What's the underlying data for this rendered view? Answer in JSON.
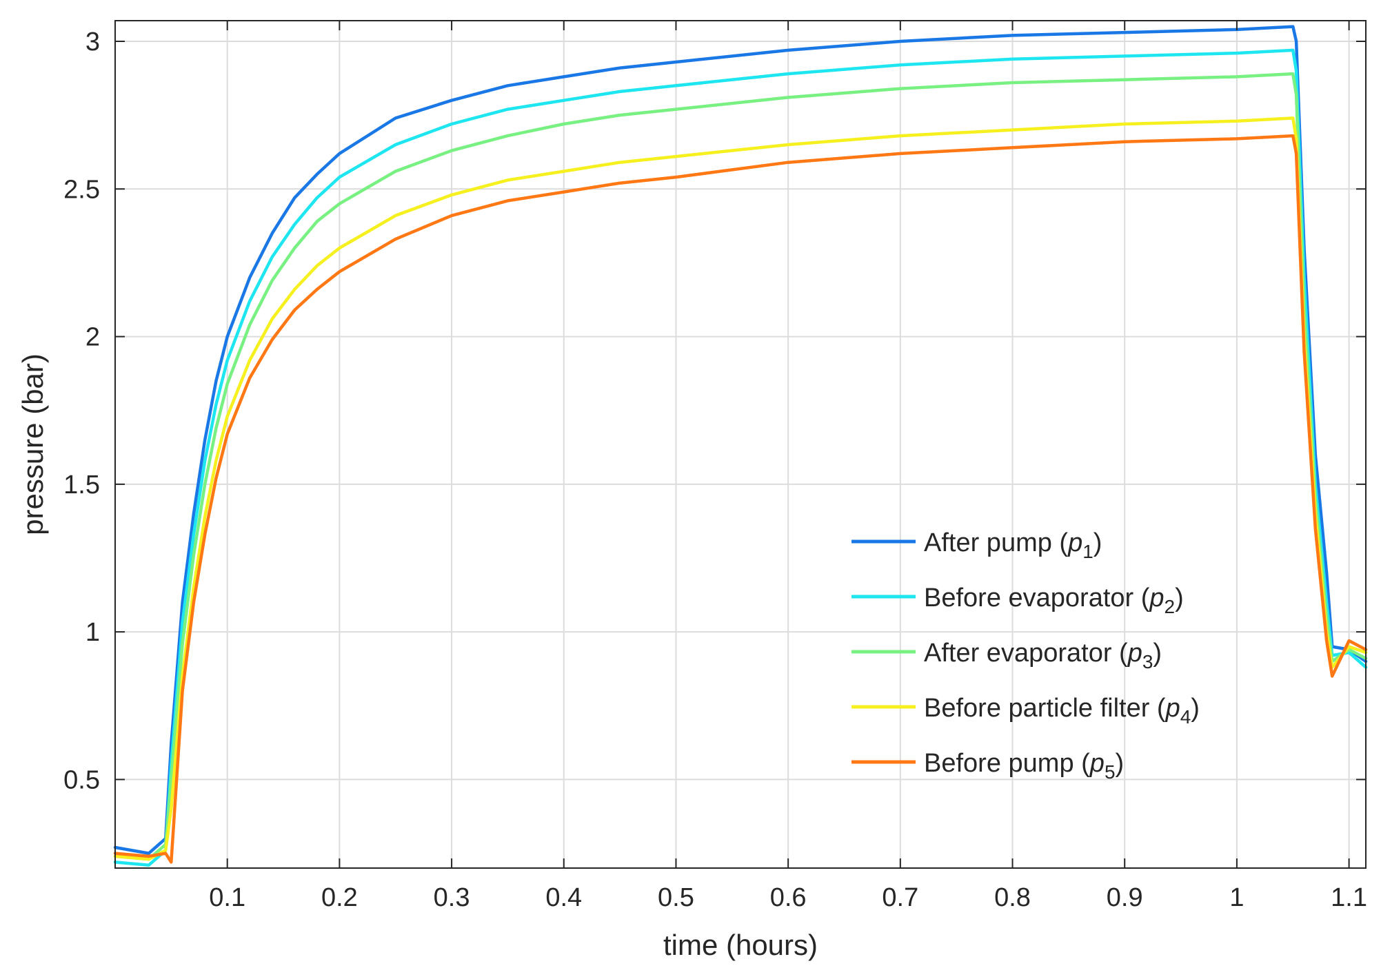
{
  "chart_data": {
    "type": "line",
    "title": "",
    "xlabel": "time (hours)",
    "ylabel": "pressure (bar)",
    "xlim": [
      0.0,
      1.115
    ],
    "ylim": [
      0.2,
      3.07
    ],
    "x_ticks": [
      0.1,
      0.2,
      0.3,
      0.4,
      0.5,
      0.6,
      0.7,
      0.8,
      0.9,
      1,
      1.1
    ],
    "y_ticks": [
      0.5,
      1,
      1.5,
      2,
      2.5,
      3
    ],
    "grid": true,
    "legend_position": "lower-right",
    "series": [
      {
        "name": "After pump",
        "symbol": "p",
        "subscript": "1",
        "color": "#1a78e6",
        "x": [
          0,
          0.03,
          0.045,
          0.05,
          0.06,
          0.07,
          0.08,
          0.09,
          0.1,
          0.12,
          0.14,
          0.16,
          0.18,
          0.2,
          0.25,
          0.3,
          0.35,
          0.4,
          0.45,
          0.5,
          0.6,
          0.7,
          0.8,
          0.9,
          1.0,
          1.05,
          1.053,
          1.06,
          1.07,
          1.08,
          1.085,
          1.1,
          1.115
        ],
        "values": [
          0.27,
          0.25,
          0.3,
          0.62,
          1.1,
          1.4,
          1.65,
          1.85,
          2.0,
          2.2,
          2.35,
          2.47,
          2.55,
          2.62,
          2.74,
          2.8,
          2.85,
          2.88,
          2.91,
          2.93,
          2.97,
          3.0,
          3.02,
          3.03,
          3.04,
          3.05,
          3.0,
          2.3,
          1.6,
          1.2,
          0.95,
          0.94,
          0.9
        ]
      },
      {
        "name": "Before evaporator",
        "symbol": "p",
        "subscript": "2",
        "color": "#1ee6f0",
        "x": [
          0,
          0.03,
          0.045,
          0.05,
          0.06,
          0.07,
          0.08,
          0.09,
          0.1,
          0.12,
          0.14,
          0.16,
          0.18,
          0.2,
          0.25,
          0.3,
          0.35,
          0.4,
          0.45,
          0.5,
          0.6,
          0.7,
          0.8,
          0.9,
          1.0,
          1.05,
          1.053,
          1.06,
          1.07,
          1.08,
          1.085,
          1.1,
          1.115
        ],
        "values": [
          0.22,
          0.21,
          0.26,
          0.55,
          1.03,
          1.33,
          1.58,
          1.77,
          1.92,
          2.12,
          2.27,
          2.38,
          2.47,
          2.54,
          2.65,
          2.72,
          2.77,
          2.8,
          2.83,
          2.85,
          2.89,
          2.92,
          2.94,
          2.95,
          2.96,
          2.97,
          2.9,
          2.2,
          1.5,
          1.1,
          0.92,
          0.93,
          0.88
        ]
      },
      {
        "name": "After evaporator",
        "symbol": "p",
        "subscript": "3",
        "color": "#78f082",
        "x": [
          0,
          0.03,
          0.045,
          0.05,
          0.06,
          0.07,
          0.08,
          0.09,
          0.1,
          0.12,
          0.14,
          0.16,
          0.18,
          0.2,
          0.25,
          0.3,
          0.35,
          0.4,
          0.45,
          0.5,
          0.6,
          0.7,
          0.8,
          0.9,
          1.0,
          1.05,
          1.053,
          1.06,
          1.07,
          1.08,
          1.085,
          1.1,
          1.115
        ],
        "values": [
          0.24,
          0.23,
          0.28,
          0.5,
          0.96,
          1.26,
          1.5,
          1.69,
          1.84,
          2.04,
          2.19,
          2.3,
          2.39,
          2.45,
          2.56,
          2.63,
          2.68,
          2.72,
          2.75,
          2.77,
          2.81,
          2.84,
          2.86,
          2.87,
          2.88,
          2.89,
          2.82,
          2.1,
          1.45,
          1.05,
          0.9,
          0.94,
          0.91
        ]
      },
      {
        "name": "Before particle filter",
        "symbol": "p",
        "subscript": "4",
        "color": "#f5f01e",
        "x": [
          0,
          0.03,
          0.045,
          0.05,
          0.06,
          0.07,
          0.08,
          0.09,
          0.1,
          0.12,
          0.14,
          0.16,
          0.18,
          0.2,
          0.25,
          0.3,
          0.35,
          0.4,
          0.45,
          0.5,
          0.6,
          0.7,
          0.8,
          0.9,
          1.0,
          1.05,
          1.053,
          1.06,
          1.07,
          1.08,
          1.085,
          1.1,
          1.115
        ],
        "values": [
          0.24,
          0.23,
          0.26,
          0.4,
          0.85,
          1.15,
          1.39,
          1.58,
          1.73,
          1.92,
          2.06,
          2.16,
          2.24,
          2.3,
          2.41,
          2.48,
          2.53,
          2.56,
          2.59,
          2.61,
          2.65,
          2.68,
          2.7,
          2.72,
          2.73,
          2.74,
          2.67,
          2.0,
          1.4,
          1.0,
          0.88,
          0.95,
          0.93
        ]
      },
      {
        "name": "Before pump",
        "symbol": "p",
        "subscript": "5",
        "color": "#ff7814",
        "x": [
          0,
          0.03,
          0.045,
          0.05,
          0.06,
          0.07,
          0.08,
          0.09,
          0.1,
          0.12,
          0.14,
          0.16,
          0.18,
          0.2,
          0.25,
          0.3,
          0.35,
          0.4,
          0.45,
          0.5,
          0.6,
          0.7,
          0.8,
          0.9,
          1.0,
          1.05,
          1.053,
          1.06,
          1.07,
          1.08,
          1.085,
          1.1,
          1.115
        ],
        "values": [
          0.25,
          0.24,
          0.25,
          0.22,
          0.8,
          1.1,
          1.33,
          1.52,
          1.67,
          1.86,
          1.99,
          2.09,
          2.16,
          2.22,
          2.33,
          2.41,
          2.46,
          2.49,
          2.52,
          2.54,
          2.59,
          2.62,
          2.64,
          2.66,
          2.67,
          2.68,
          2.62,
          1.95,
          1.35,
          0.97,
          0.85,
          0.97,
          0.94
        ]
      }
    ]
  }
}
